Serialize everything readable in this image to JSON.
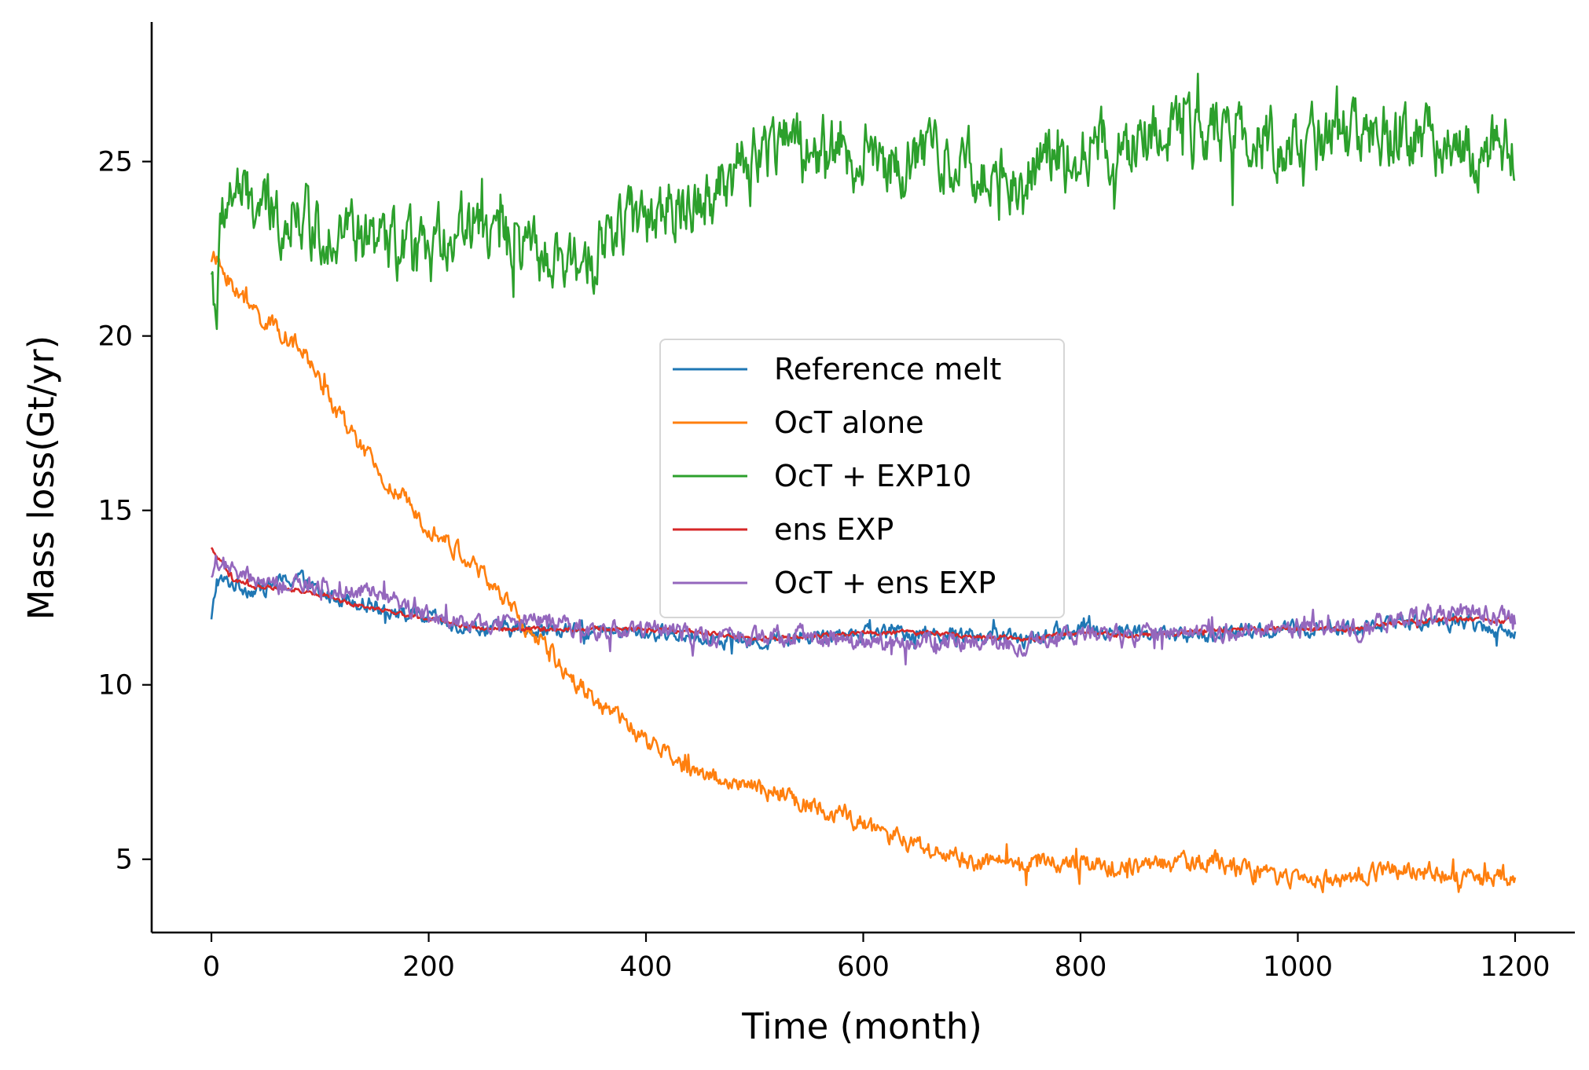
{
  "chart_data": {
    "type": "line",
    "xlabel": "Time (month)",
    "ylabel": "Mass loss(Gt/yr)",
    "xlim": [
      -55,
      1255
    ],
    "ylim": [
      2.9,
      29
    ],
    "xticks": [
      0,
      200,
      400,
      600,
      800,
      1000,
      1200
    ],
    "yticks": [
      5,
      10,
      15,
      20,
      25
    ],
    "grid": false,
    "legend_position": "center",
    "series": [
      {
        "name": "Reference melt",
        "color": "#1f77b4",
        "x": [
          0,
          5,
          20,
          40,
          60,
          80,
          100,
          120,
          150,
          180,
          200,
          230,
          260,
          300,
          350,
          400,
          450,
          500,
          550,
          600,
          650,
          700,
          750,
          800,
          850,
          900,
          950,
          1000,
          1050,
          1100,
          1150,
          1200
        ],
        "y": [
          11.8,
          13.0,
          12.9,
          12.7,
          12.9,
          13.1,
          12.6,
          12.5,
          12.3,
          12.0,
          11.9,
          11.7,
          11.6,
          11.6,
          11.5,
          11.5,
          11.4,
          11.2,
          11.4,
          11.5,
          11.5,
          11.4,
          11.3,
          11.6,
          11.5,
          11.4,
          11.5,
          11.6,
          11.6,
          11.8,
          11.8,
          11.5
        ]
      },
      {
        "name": "OcT alone",
        "color": "#ff7f0e",
        "x": [
          0,
          10,
          30,
          50,
          70,
          90,
          100,
          120,
          140,
          160,
          180,
          200,
          220,
          240,
          260,
          280,
          300,
          320,
          340,
          360,
          380,
          400,
          420,
          440,
          460,
          480,
          500,
          520,
          540,
          560,
          580,
          600,
          620,
          640,
          660,
          680,
          700,
          720,
          740,
          760,
          780,
          800,
          820,
          840,
          860,
          880,
          900,
          920,
          940,
          960,
          980,
          1000,
          1020,
          1040,
          1060,
          1080,
          1100,
          1120,
          1140,
          1160,
          1180,
          1200
        ],
        "y": [
          22.3,
          21.9,
          21.0,
          20.4,
          20.0,
          19.3,
          18.7,
          17.6,
          16.7,
          15.8,
          15.2,
          14.6,
          14.0,
          13.5,
          12.8,
          12.0,
          11.3,
          10.6,
          10.0,
          9.4,
          8.9,
          8.4,
          8.0,
          7.6,
          7.4,
          7.2,
          7.0,
          6.9,
          6.7,
          6.5,
          6.2,
          6.0,
          5.7,
          5.5,
          5.3,
          5.1,
          4.9,
          4.9,
          4.85,
          4.9,
          4.95,
          4.9,
          4.85,
          4.8,
          4.8,
          4.85,
          4.9,
          5.0,
          4.8,
          4.6,
          4.5,
          4.45,
          4.4,
          4.45,
          4.55,
          4.65,
          4.7,
          4.65,
          4.55,
          4.4,
          4.5,
          4.5
        ]
      },
      {
        "name": "OcT + EXP10",
        "color": "#2ca02c",
        "x": [
          0,
          5,
          10,
          20,
          40,
          60,
          80,
          100,
          120,
          140,
          160,
          180,
          200,
          220,
          240,
          260,
          280,
          300,
          320,
          340,
          360,
          380,
          400,
          420,
          440,
          460,
          480,
          500,
          520,
          540,
          560,
          580,
          600,
          620,
          640,
          660,
          680,
          700,
          720,
          740,
          760,
          780,
          800,
          820,
          840,
          860,
          880,
          900,
          920,
          940,
          960,
          980,
          1000,
          1020,
          1040,
          1060,
          1080,
          1100,
          1120,
          1140,
          1160,
          1180,
          1200
        ],
        "y": [
          21.8,
          20.8,
          23.5,
          24.2,
          23.7,
          23.4,
          23.6,
          23.0,
          23.2,
          22.7,
          22.6,
          22.4,
          22.3,
          23.1,
          23.3,
          22.9,
          22.5,
          22.3,
          21.8,
          22.2,
          22.7,
          23.2,
          23.4,
          23.6,
          23.9,
          24.1,
          24.6,
          25.2,
          25.7,
          25.6,
          25.4,
          25.1,
          25.2,
          25.0,
          24.9,
          25.3,
          25.2,
          24.9,
          24.6,
          24.5,
          24.9,
          25.0,
          25.3,
          25.6,
          25.2,
          25.7,
          25.9,
          25.7,
          25.9,
          26.0,
          25.7,
          25.5,
          25.6,
          25.5,
          25.8,
          25.6,
          25.8,
          25.6,
          25.7,
          25.5,
          25.1,
          25.4,
          25.6
        ]
      },
      {
        "name": "ens EXP",
        "color": "#d62728",
        "x": [
          0,
          20,
          40,
          60,
          80,
          100,
          120,
          150,
          180,
          200,
          230,
          260,
          300,
          350,
          400,
          450,
          500,
          550,
          600,
          650,
          700,
          750,
          800,
          850,
          900,
          950,
          1000,
          1050,
          1100,
          1150,
          1200
        ],
        "y": [
          13.9,
          13.0,
          12.8,
          12.8,
          12.7,
          12.6,
          12.4,
          12.2,
          12.0,
          11.9,
          11.7,
          11.6,
          11.6,
          11.6,
          11.6,
          11.5,
          11.3,
          11.4,
          11.5,
          11.5,
          11.4,
          11.3,
          11.5,
          11.4,
          11.5,
          11.6,
          11.6,
          11.6,
          11.8,
          11.9,
          11.8
        ]
      },
      {
        "name": "OcT + ens EXP",
        "color": "#9467bd",
        "x": [
          0,
          5,
          20,
          40,
          60,
          80,
          100,
          130,
          160,
          190,
          220,
          250,
          280,
          310,
          350,
          400,
          450,
          500,
          550,
          600,
          650,
          700,
          750,
          800,
          850,
          900,
          950,
          1000,
          1050,
          1100,
          1150,
          1200
        ],
        "y": [
          13.2,
          13.6,
          13.2,
          13.0,
          12.8,
          12.9,
          12.7,
          12.8,
          12.6,
          12.1,
          12.0,
          11.6,
          11.8,
          11.8,
          11.6,
          11.6,
          11.4,
          11.4,
          11.4,
          11.2,
          11.2,
          11.2,
          11.1,
          11.5,
          11.4,
          11.6,
          11.5,
          11.6,
          11.6,
          11.9,
          12.1,
          11.9
        ]
      }
    ]
  }
}
